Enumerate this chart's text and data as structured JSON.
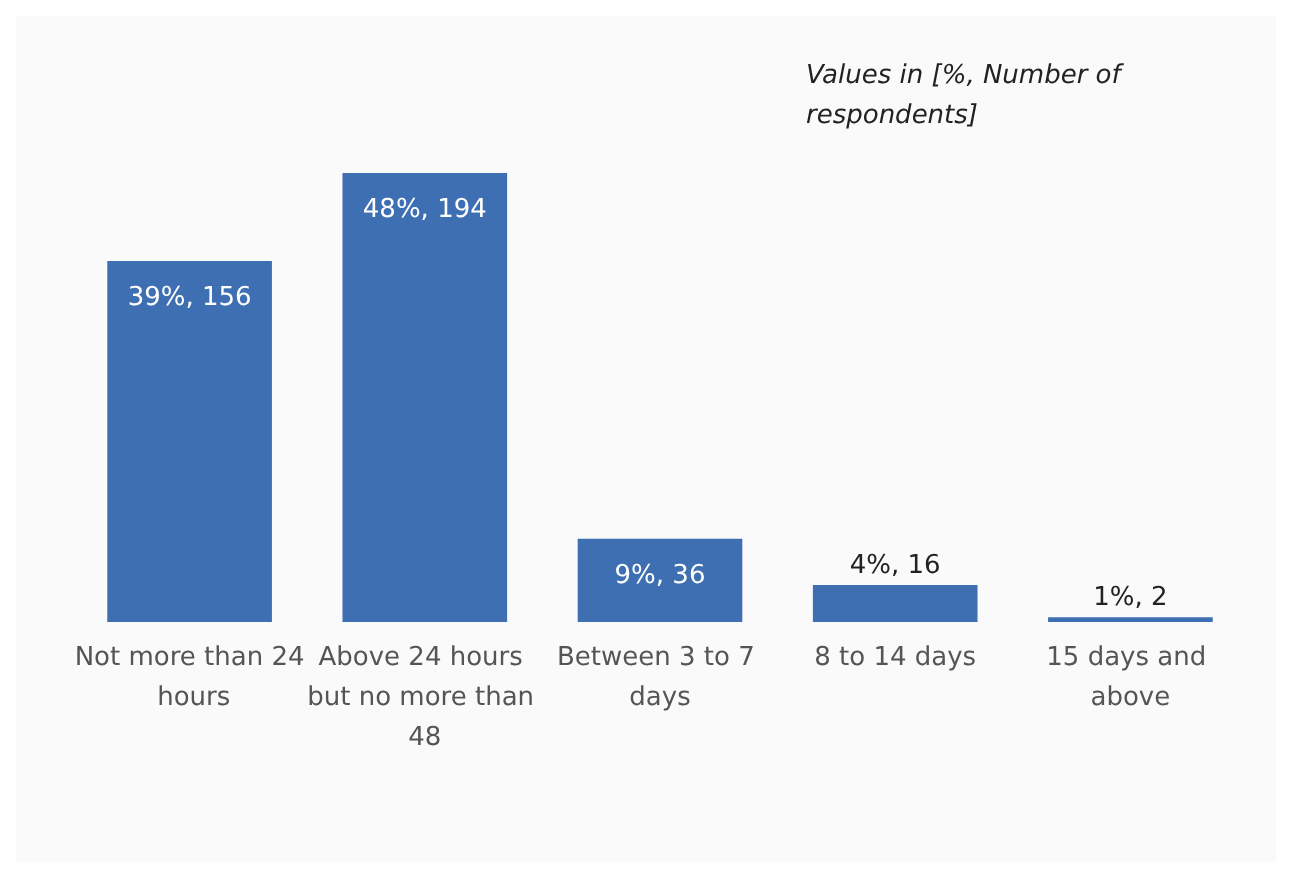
{
  "chart_data": {
    "type": "bar",
    "categories": [
      "Not more than 24 hours",
      "Above 24 hours but no more than 48",
      "Between 3 to 7 days",
      "8 to 14 days",
      "15 days and above"
    ],
    "values": [
      156,
      194,
      36,
      16,
      2
    ],
    "color": "#3d6fb2",
    "value_labels": [
      "39%, 156",
      "48%, 194",
      "9%, 36",
      "4%, 16",
      "1%, 2"
    ],
    "annotations": [
      "Values in [%, Number of respondents]"
    ]
  }
}
